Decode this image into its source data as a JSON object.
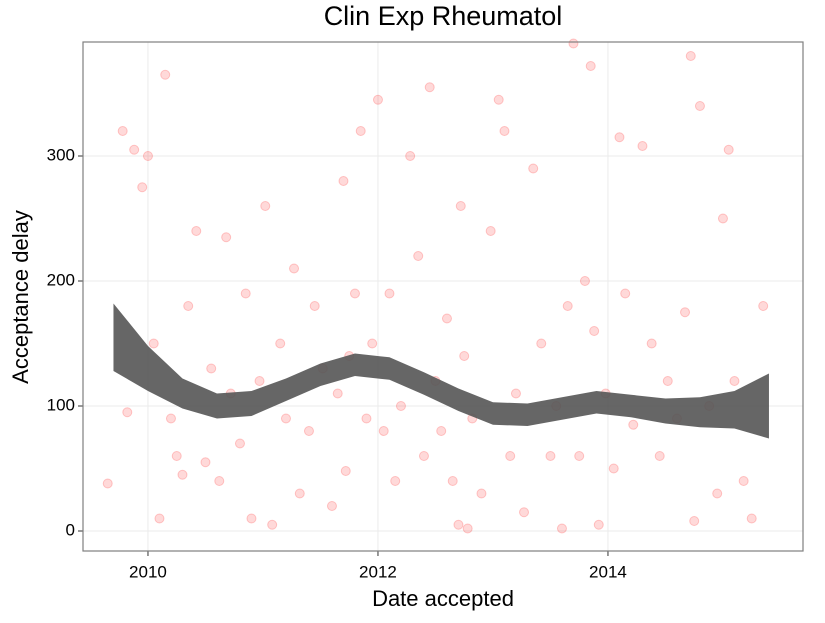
{
  "chart_data": {
    "type": "scatter",
    "title": "Clin Exp Rheumatol",
    "x_label": "Date accepted",
    "y_label": "Acceptance delay",
    "xlim": [
      2009.435,
      2015.696
    ],
    "ylim": [
      -16,
      391.2
    ],
    "xticks": [
      2010,
      2012,
      2014
    ],
    "yticks": [
      0,
      100,
      200,
      300
    ],
    "grid": true,
    "color": "#ff0000",
    "x": [
      2009.65,
      2009.78,
      2009.82,
      2009.88,
      2009.95,
      2010.0,
      2010.05,
      2010.1,
      2010.15,
      2010.2,
      2010.25,
      2010.3,
      2010.35,
      2010.42,
      2010.5,
      2010.55,
      2010.62,
      2010.68,
      2010.72,
      2010.8,
      2010.85,
      2010.9,
      2010.97,
      2011.02,
      2011.08,
      2011.15,
      2011.2,
      2011.27,
      2011.32,
      2011.4,
      2011.45,
      2011.52,
      2011.6,
      2011.65,
      2011.7,
      2011.72,
      2011.75,
      2011.8,
      2011.85,
      2011.9,
      2011.95,
      2012.0,
      2012.05,
      2012.1,
      2012.15,
      2012.2,
      2012.28,
      2012.35,
      2012.4,
      2012.45,
      2012.5,
      2012.55,
      2012.6,
      2012.65,
      2012.7,
      2012.72,
      2012.75,
      2012.78,
      2012.82,
      2012.9,
      2012.98,
      2013.05,
      2013.1,
      2013.15,
      2013.2,
      2013.27,
      2013.35,
      2013.42,
      2013.5,
      2013.55,
      2013.6,
      2013.65,
      2013.7,
      2013.75,
      2013.8,
      2013.85,
      2013.88,
      2013.92,
      2013.98,
      2014.05,
      2014.1,
      2014.15,
      2014.22,
      2014.3,
      2014.38,
      2014.45,
      2014.52,
      2014.6,
      2014.67,
      2014.72,
      2014.75,
      2014.8,
      2014.88,
      2014.95,
      2015.0,
      2015.05,
      2015.1,
      2015.18,
      2015.25,
      2015.35
    ],
    "values": [
      38,
      320,
      95,
      305,
      275,
      300,
      150,
      10,
      365,
      90,
      60,
      45,
      180,
      240,
      55,
      130,
      40,
      235,
      110,
      70,
      190,
      10,
      120,
      260,
      5,
      150,
      90,
      210,
      30,
      80,
      180,
      130,
      20,
      110,
      280,
      48,
      140,
      190,
      320,
      90,
      150,
      345,
      80,
      190,
      40,
      100,
      300,
      220,
      60,
      355,
      120,
      80,
      170,
      40,
      5,
      260,
      140,
      2,
      90,
      30,
      240,
      345,
      320,
      60,
      110,
      15,
      290,
      150,
      60,
      100,
      2,
      180,
      390,
      60,
      200,
      372,
      160,
      5,
      110,
      50,
      315,
      190,
      85,
      308,
      150,
      60,
      120,
      90,
      175,
      380,
      8,
      340,
      100,
      30,
      250,
      305,
      120,
      40,
      10,
      180
    ],
    "band": {
      "color": "#555555",
      "x": [
        2009.7,
        2010.0,
        2010.3,
        2010.6,
        2010.9,
        2011.2,
        2011.5,
        2011.8,
        2012.1,
        2012.4,
        2012.7,
        2013.0,
        2013.3,
        2013.6,
        2013.9,
        2014.2,
        2014.5,
        2014.8,
        2015.1,
        2015.4
      ],
      "lower": [
        128,
        112,
        98,
        90,
        92,
        104,
        116,
        124,
        121,
        109,
        96,
        85,
        84,
        89,
        94,
        91,
        86,
        83,
        82,
        74
      ],
      "upper": [
        182,
        148,
        122,
        110,
        112,
        122,
        134,
        142,
        139,
        127,
        114,
        103,
        102,
        107,
        112,
        109,
        106,
        107,
        112,
        126
      ]
    }
  }
}
